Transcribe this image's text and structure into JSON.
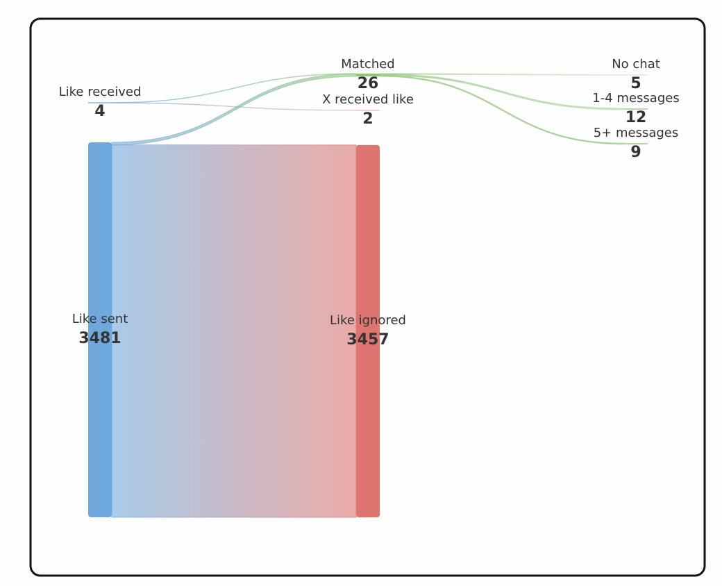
{
  "chart_data": {
    "type": "sankey",
    "nodes": [
      {
        "label": "Like received",
        "value": 4,
        "color": "#6fa8dc"
      },
      {
        "label": "Like sent",
        "value": 3481,
        "color": "#6fa8dc"
      },
      {
        "label": "Matched",
        "value": 26,
        "color": "#93c47d"
      },
      {
        "label": "X received like",
        "value": 2,
        "color": "#e6b8af"
      },
      {
        "label": "Like ignored",
        "value": 3457,
        "color": "#dd7470"
      },
      {
        "label": "No chat",
        "value": 5,
        "color": "#d9ead3"
      },
      {
        "label": "1-4 messages",
        "value": 12,
        "color": "#b6d7a8"
      },
      {
        "label": "5+ messages",
        "value": 9,
        "color": "#93c47d"
      }
    ],
    "links": [
      {
        "source": 0,
        "target": 2,
        "value": 2
      },
      {
        "source": 0,
        "target": 3,
        "value": 2
      },
      {
        "source": 1,
        "target": 2,
        "value": 24
      },
      {
        "source": 1,
        "target": 4,
        "value": 3457
      },
      {
        "source": 2,
        "target": 5,
        "value": 5
      },
      {
        "source": 2,
        "target": 6,
        "value": 12
      },
      {
        "source": 2,
        "target": 7,
        "value": 9
      }
    ]
  }
}
